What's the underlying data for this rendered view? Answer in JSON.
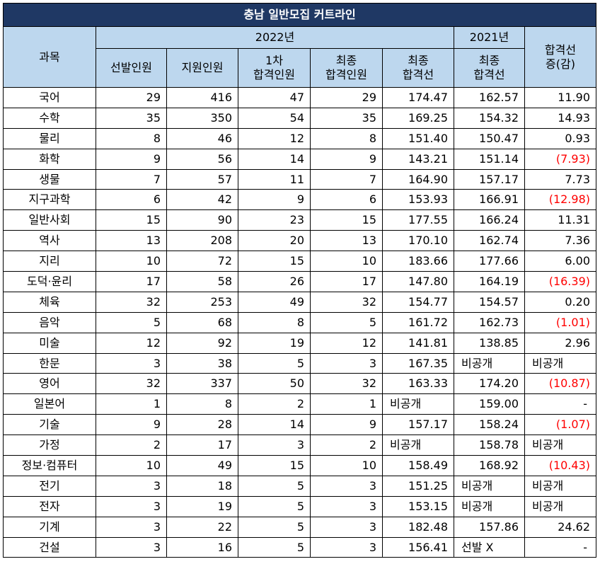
{
  "title": "충남 일반모집 커트라인",
  "header": {
    "subject": "과목",
    "year2022": "2022년",
    "year2021": "2021년",
    "change_line1": "합격선",
    "change_line2": "증(감)",
    "selected": "선발인원",
    "applicants": "지원인원",
    "first_line1": "1차",
    "first_line2": "합격인원",
    "final_line1": "최종",
    "final_line2": "합격인원",
    "cut_line1": "최종",
    "cut_line2": "합격선",
    "cut21_line1": "최종",
    "cut21_line2": "합격선"
  },
  "rows": [
    {
      "subject": "국어",
      "selected": "29",
      "applicants": "416",
      "first": "47",
      "final": "29",
      "cut2022": "174.47",
      "cut2021": "162.57",
      "change": "11.90",
      "negative": false
    },
    {
      "subject": "수학",
      "selected": "35",
      "applicants": "350",
      "first": "54",
      "final": "35",
      "cut2022": "169.25",
      "cut2021": "154.32",
      "change": "14.93",
      "negative": false
    },
    {
      "subject": "물리",
      "selected": "8",
      "applicants": "46",
      "first": "12",
      "final": "8",
      "cut2022": "151.40",
      "cut2021": "150.47",
      "change": "0.93",
      "negative": false
    },
    {
      "subject": "화학",
      "selected": "9",
      "applicants": "56",
      "first": "14",
      "final": "9",
      "cut2022": "143.21",
      "cut2021": "151.14",
      "change": "(7.93)",
      "negative": true
    },
    {
      "subject": "생물",
      "selected": "7",
      "applicants": "57",
      "first": "11",
      "final": "7",
      "cut2022": "164.90",
      "cut2021": "157.17",
      "change": "7.73",
      "negative": false
    },
    {
      "subject": "지구과학",
      "selected": "6",
      "applicants": "42",
      "first": "9",
      "final": "6",
      "cut2022": "153.93",
      "cut2021": "166.91",
      "change": "(12.98)",
      "negative": true
    },
    {
      "subject": "일반사회",
      "selected": "15",
      "applicants": "90",
      "first": "23",
      "final": "15",
      "cut2022": "177.55",
      "cut2021": "166.24",
      "change": "11.31",
      "negative": false
    },
    {
      "subject": "역사",
      "selected": "13",
      "applicants": "208",
      "first": "20",
      "final": "13",
      "cut2022": "170.10",
      "cut2021": "162.74",
      "change": "7.36",
      "negative": false
    },
    {
      "subject": "지리",
      "selected": "10",
      "applicants": "72",
      "first": "15",
      "final": "10",
      "cut2022": "183.66",
      "cut2021": "177.66",
      "change": "6.00",
      "negative": false
    },
    {
      "subject": "도덕·윤리",
      "selected": "17",
      "applicants": "58",
      "first": "26",
      "final": "17",
      "cut2022": "147.80",
      "cut2021": "164.19",
      "change": "(16.39)",
      "negative": true
    },
    {
      "subject": "체육",
      "selected": "32",
      "applicants": "253",
      "first": "49",
      "final": "32",
      "cut2022": "154.77",
      "cut2021": "154.57",
      "change": "0.20",
      "negative": false
    },
    {
      "subject": "음악",
      "selected": "5",
      "applicants": "68",
      "first": "8",
      "final": "5",
      "cut2022": "161.72",
      "cut2021": "162.73",
      "change": "(1.01)",
      "negative": true
    },
    {
      "subject": "미술",
      "selected": "12",
      "applicants": "92",
      "first": "19",
      "final": "12",
      "cut2022": "141.81",
      "cut2021": "138.85",
      "change": "2.96",
      "negative": false
    },
    {
      "subject": "한문",
      "selected": "3",
      "applicants": "38",
      "first": "5",
      "final": "3",
      "cut2022": "167.35",
      "cut2021": "비공개",
      "change": "비공개",
      "negative": false
    },
    {
      "subject": "영어",
      "selected": "32",
      "applicants": "337",
      "first": "50",
      "final": "32",
      "cut2022": "163.33",
      "cut2021": "174.20",
      "change": "(10.87)",
      "negative": true
    },
    {
      "subject": "일본어",
      "selected": "1",
      "applicants": "8",
      "first": "2",
      "final": "1",
      "cut2022": "비공개",
      "cut2021": "159.00",
      "change": "-",
      "negative": false
    },
    {
      "subject": "기술",
      "selected": "9",
      "applicants": "28",
      "first": "14",
      "final": "9",
      "cut2022": "157.17",
      "cut2021": "158.24",
      "change": "(1.07)",
      "negative": true
    },
    {
      "subject": "가정",
      "selected": "2",
      "applicants": "17",
      "first": "3",
      "final": "2",
      "cut2022": "비공개",
      "cut2021": "158.78",
      "change": "비공개",
      "negative": false
    },
    {
      "subject": "정보·컴퓨터",
      "selected": "10",
      "applicants": "49",
      "first": "15",
      "final": "10",
      "cut2022": "158.49",
      "cut2021": "168.92",
      "change": "(10.43)",
      "negative": true
    },
    {
      "subject": "전기",
      "selected": "3",
      "applicants": "18",
      "first": "5",
      "final": "3",
      "cut2022": "151.25",
      "cut2021": "비공개",
      "change": "비공개",
      "negative": false
    },
    {
      "subject": "전자",
      "selected": "3",
      "applicants": "19",
      "first": "5",
      "final": "3",
      "cut2022": "153.15",
      "cut2021": "비공개",
      "change": "비공개",
      "negative": false
    },
    {
      "subject": "기계",
      "selected": "3",
      "applicants": "22",
      "first": "5",
      "final": "3",
      "cut2022": "182.48",
      "cut2021": "157.86",
      "change": "24.62",
      "negative": false
    },
    {
      "subject": "건설",
      "selected": "3",
      "applicants": "16",
      "first": "5",
      "final": "3",
      "cut2022": "156.41",
      "cut2021": "선발 X",
      "change": "-",
      "negative": false
    }
  ],
  "colors": {
    "title_bg": "#1f3864",
    "header_bg": "#bdd7ee",
    "negative": "#ff0000"
  }
}
